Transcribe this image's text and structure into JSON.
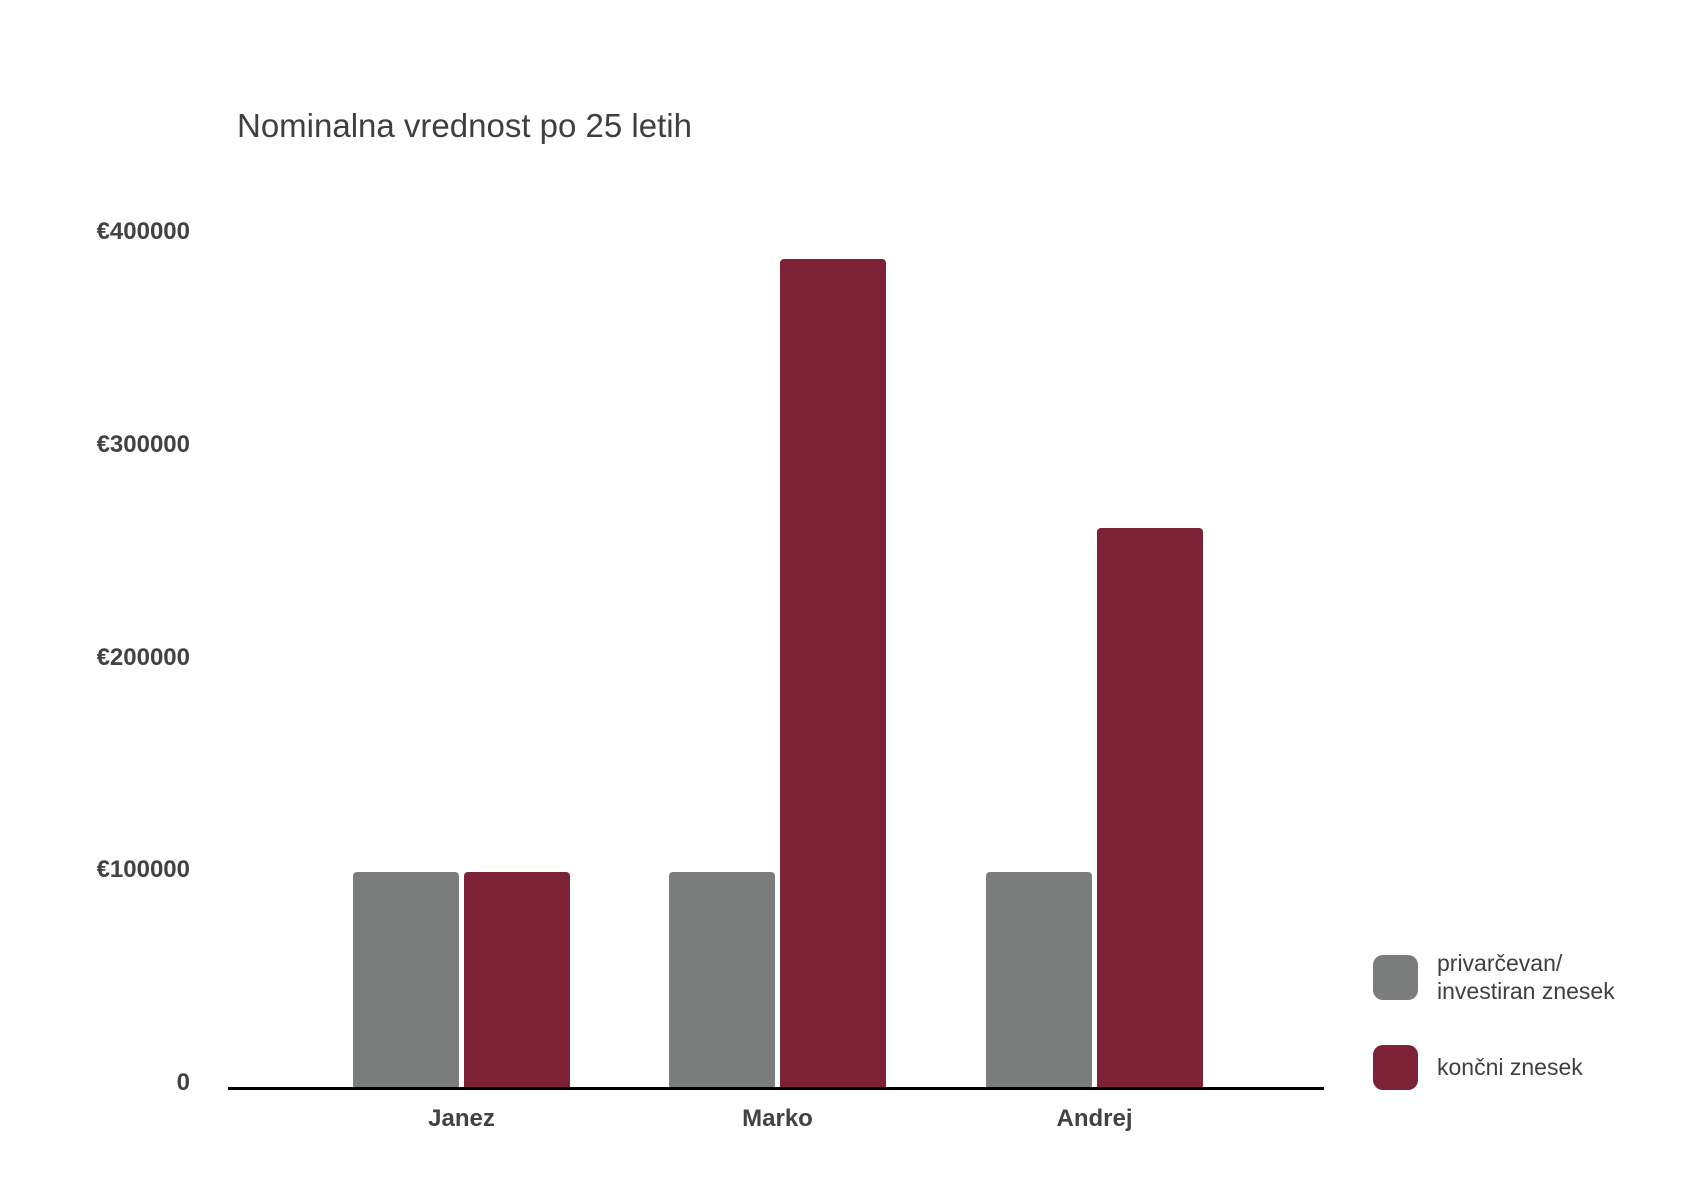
{
  "title": "Nominalna vrednost po 25 letih",
  "chart_data": {
    "type": "bar",
    "title": "Nominalna vrednost po 25 letih",
    "categories": [
      "Janez",
      "Marko",
      "Andrej"
    ],
    "series": [
      {
        "name": "privarčevan/investiran znesek",
        "color": "#7B7D7D",
        "values": [
          100000,
          100000,
          100000
        ]
      },
      {
        "name": "končni znesek",
        "color": "#7C2136",
        "values": [
          100000,
          385000,
          260000
        ]
      }
    ],
    "y_ticks": [
      "€400000",
      "€300000",
      "€200000",
      "€100000",
      "0"
    ],
    "ylim": [
      0,
      400000
    ],
    "currency": "€",
    "grid": false,
    "legend_position": "right",
    "axis_color": "#000000",
    "tick_label_color": "#424242"
  },
  "legend": {
    "items": [
      {
        "lines": [
          "privarčevan/",
          "investiran znesek"
        ]
      },
      {
        "lines": [
          "končni znesek"
        ]
      }
    ]
  }
}
